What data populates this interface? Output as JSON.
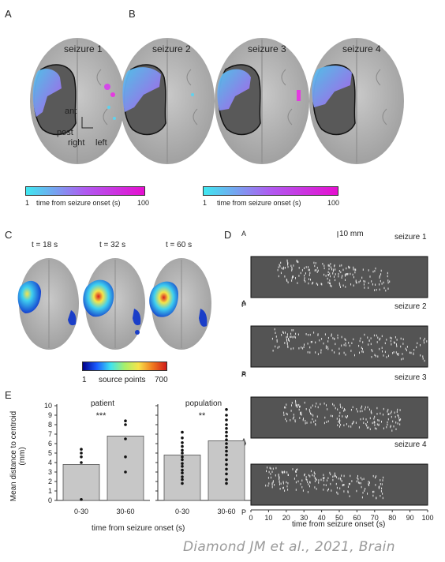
{
  "figure": {
    "panels": {
      "A": "A",
      "B": "B",
      "C": "C",
      "D": "D",
      "E": "E"
    },
    "top_brains": [
      {
        "label": "seizure 1"
      },
      {
        "label": "seizure 2"
      },
      {
        "label": "seizure 3"
      },
      {
        "label": "seizure 4"
      }
    ],
    "orientation": {
      "ant": "ant",
      "post": "post",
      "right": "right",
      "left": "left"
    },
    "colorbar_a": {
      "min": "1",
      "max": "100",
      "label": "time from seizure onset (s)",
      "color_low": "#3fe8f0",
      "color_high": "#e60fd0"
    },
    "colorbar_b": {
      "min": "1",
      "max": "100",
      "label": "time from seizure onset (s)",
      "color_low": "#3fe8f0",
      "color_high": "#e60fd0"
    },
    "c_brains": [
      {
        "label": "t = 18 s"
      },
      {
        "label": "t = 32 s"
      },
      {
        "label": "t = 60 s"
      }
    ],
    "colorbar_c": {
      "min": "1",
      "max": "700",
      "label": "source points"
    },
    "panel_d": {
      "scale_bar": "10 mm",
      "axis_a": "A",
      "axis_p": "P",
      "rasters": [
        {
          "label": "seizure 1"
        },
        {
          "label": "seizure 2"
        },
        {
          "label": "seizure 3"
        },
        {
          "label": "seizure 4"
        }
      ],
      "xlabel": "time from seizure onset (s)",
      "xticks": [
        "0",
        "10",
        "20",
        "30",
        "40",
        "50",
        "60",
        "70",
        "80",
        "90",
        "100"
      ]
    },
    "caption": "Diamond JM et al., 2021, Brain"
  },
  "chart_data": [
    {
      "type": "bar",
      "title": "patient",
      "significance": "***",
      "categories": [
        "0-30",
        "30-60"
      ],
      "values": [
        3.8,
        6.8
      ],
      "points": [
        [
          5.4,
          5.0,
          4.6,
          4.0,
          0.1
        ],
        [
          8.4,
          8.0,
          6.5,
          4.6,
          3.0
        ]
      ],
      "ylabel": "Mean distance to centroid (mm)",
      "xlabel": "time from seizure onset (s)",
      "ylim": [
        0,
        10
      ],
      "yticks": [
        "0",
        "1",
        "2",
        "3",
        "4",
        "5",
        "6",
        "7",
        "8",
        "9",
        "10"
      ]
    },
    {
      "type": "bar",
      "title": "population",
      "significance": "**",
      "categories": [
        "0-30",
        "30-60"
      ],
      "values": [
        4.8,
        6.3
      ],
      "points": [
        [
          7.2,
          6.6,
          6.1,
          5.7,
          5.3,
          5.0,
          4.6,
          4.3,
          3.9,
          3.6,
          3.2,
          2.9,
          2.5,
          2.2,
          1.8
        ],
        [
          9.6,
          9.0,
          8.5,
          8.0,
          7.6,
          7.2,
          6.8,
          6.4,
          6.0,
          5.6,
          5.2,
          4.8,
          4.3,
          3.8,
          3.3,
          2.8,
          2.2,
          1.8
        ]
      ],
      "xlabel": "time from seizure onset (s)",
      "ylim": [
        0,
        10
      ]
    }
  ]
}
